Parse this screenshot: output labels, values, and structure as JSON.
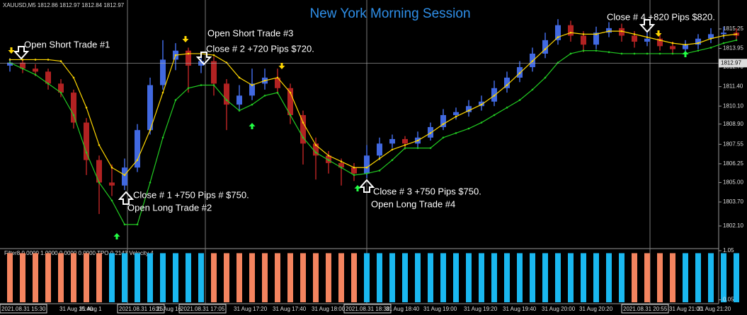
{
  "chart_data": {
    "type": "candlestick",
    "title": "New York Morning Session",
    "header": "XAUUSD,M5  1812.86 1812.97 1812.84 1812.97",
    "current_price": 1812.97,
    "ylim": [
      1800.59,
      1817.18
    ],
    "yticks": [
      {
        "value": 1802.1,
        "label": "1802.10"
      },
      {
        "value": 1803.7,
        "label": "1803.70"
      },
      {
        "value": 1805,
        "label": "1805.00"
      },
      1806.25,
      1807.55,
      {
        "value": 1808.9,
        "label": "1808.90"
      },
      {
        "value": 1810.1,
        "label": "1810.10"
      },
      {
        "value": 1811.4,
        "label": "1811.40"
      },
      {
        "value": 1812.7,
        "label": "1812.70"
      },
      1813.95,
      1815.25
    ],
    "up_color": "#4169e1",
    "down_color": "#b22222",
    "open": [
      1812.8,
      1813.0,
      1812.6,
      1812.4,
      1811.6,
      1811.0,
      1809.0,
      1806.5,
      1805.0,
      1804.8,
      1806.0,
      1808.5,
      1811.5,
      1813.2,
      1813.8,
      1812.8,
      1813.1,
      1811.6,
      1810.2,
      1810.8,
      1811.6,
      1812.0,
      1811.3,
      1809.5,
      1807.6,
      1806.8,
      1806.3,
      1806.0,
      1805.6,
      1806.8,
      1807.6,
      1807.9,
      1807.6,
      1808.0,
      1808.7,
      1809.5,
      1809.7,
      1810.1,
      1810.4,
      1811.3,
      1812.0,
      1812.7,
      1813.6,
      1814.5,
      1815.5,
      1814.8,
      1814.2,
      1815.0,
      1815.3,
      1814.8,
      1814.4,
      1814.6,
      1814.1,
      1813.9,
      1814.2,
      1814.6,
      1814.9,
      1815.0
    ],
    "high": [
      1813.3,
      1813.2,
      1812.9,
      1812.6,
      1811.9,
      1811.2,
      1809.3,
      1806.8,
      1806.2,
      1806.6,
      1808.9,
      1812.0,
      1814.5,
      1814.3,
      1814.0,
      1813.6,
      1813.4,
      1811.9,
      1811.5,
      1812.6,
      1812.6,
      1812.6,
      1811.6,
      1809.8,
      1808.0,
      1807.1,
      1806.6,
      1806.3,
      1807.5,
      1808.0,
      1808.2,
      1808.1,
      1808.4,
      1809.0,
      1809.9,
      1810.0,
      1810.5,
      1810.8,
      1811.8,
      1812.4,
      1813.1,
      1814.0,
      1815.0,
      1815.9,
      1815.8,
      1815.1,
      1815.4,
      1815.7,
      1815.6,
      1815.1,
      1815.0,
      1814.9,
      1814.4,
      1814.5,
      1814.9,
      1815.3,
      1815.4,
      1815.3
    ],
    "low": [
      1812.4,
      1812.3,
      1812.1,
      1811.2,
      1810.7,
      1808.6,
      1805.5,
      1802.9,
      1804.1,
      1804.5,
      1805.7,
      1808.2,
      1811.2,
      1812.5,
      1811.0,
      1812.3,
      1810.8,
      1808.5,
      1809.8,
      1810.5,
      1811.2,
      1810.9,
      1808.9,
      1806.2,
      1805.2,
      1805.6,
      1804.8,
      1805.1,
      1805.3,
      1806.5,
      1807.3,
      1807.2,
      1807.3,
      1807.8,
      1808.5,
      1809.2,
      1809.4,
      1809.8,
      1810.1,
      1811.0,
      1811.7,
      1812.4,
      1813.3,
      1814.2,
      1814.4,
      1813.7,
      1813.9,
      1814.7,
      1814.4,
      1814.0,
      1814.1,
      1813.8,
      1813.6,
      1813.6,
      1813.9,
      1814.3,
      1814.6,
      1814.5
    ],
    "close": [
      1813.0,
      1812.6,
      1812.4,
      1811.6,
      1811.0,
      1809.0,
      1806.5,
      1805.0,
      1804.8,
      1806.0,
      1808.5,
      1811.5,
      1813.2,
      1813.8,
      1812.8,
      1813.1,
      1811.6,
      1810.2,
      1810.8,
      1811.6,
      1812.0,
      1811.3,
      1809.5,
      1807.6,
      1806.8,
      1806.3,
      1806.0,
      1805.6,
      1806.8,
      1807.6,
      1807.9,
      1807.6,
      1808.0,
      1808.7,
      1809.5,
      1809.7,
      1810.1,
      1810.4,
      1811.3,
      1812.0,
      1812.7,
      1813.6,
      1814.5,
      1815.5,
      1814.8,
      1814.2,
      1815.0,
      1815.3,
      1814.8,
      1814.4,
      1814.6,
      1814.1,
      1813.9,
      1814.2,
      1814.6,
      1814.9,
      1815.0,
      1814.8
    ],
    "lines": [
      {
        "color": "#ffd700",
        "values": [
          1813.2,
          1813.2,
          1813.2,
          1813.2,
          1813.1,
          1812.0,
          1810.0,
          1807.5,
          1806.0,
          1805.5,
          1806.5,
          1808.5,
          1811.0,
          1813.5,
          1813.6,
          1813.6,
          1813.5,
          1813.0,
          1812.0,
          1811.5,
          1811.8,
          1812.0,
          1811.0,
          1809.0,
          1807.5,
          1806.8,
          1806.4,
          1806.0,
          1806.0,
          1806.6,
          1807.2,
          1807.5,
          1807.8,
          1808.3,
          1808.9,
          1809.4,
          1809.8,
          1810.2,
          1810.8,
          1811.5,
          1812.3,
          1813.1,
          1813.9,
          1814.7,
          1815.0,
          1814.9,
          1814.9,
          1815.1,
          1815.1,
          1814.9,
          1814.7,
          1814.5,
          1814.3,
          1814.2,
          1814.3,
          1814.6,
          1814.8,
          1814.9
        ]
      },
      {
        "color": "#22cc22",
        "values": [
          1813.0,
          1812.6,
          1812.2,
          1811.6,
          1811.0,
          1809.5,
          1807.0,
          1805.0,
          1803.8,
          1802.2,
          1802.2,
          1805.0,
          1808.0,
          1810.5,
          1811.3,
          1811.5,
          1811.5,
          1810.5,
          1809.8,
          1810.2,
          1810.8,
          1811.0,
          1809.5,
          1808.0,
          1807.0,
          1806.5,
          1806.0,
          1805.5,
          1805.6,
          1805.8,
          1806.5,
          1807.3,
          1807.3,
          1807.3,
          1808.0,
          1808.3,
          1808.6,
          1809.0,
          1809.5,
          1810.0,
          1810.5,
          1811.2,
          1812.0,
          1813.0,
          1813.6,
          1813.8,
          1813.8,
          1813.7,
          1813.6,
          1813.6,
          1813.6,
          1813.6,
          1813.6,
          1813.6,
          1813.8,
          1814.0,
          1814.3,
          1814.5
        ]
      }
    ],
    "annotations": [
      "Open Short Trade #1",
      "Open Short Trade #3",
      "Close # 2 +720 Pips $720.",
      "Close # 1 +750 Pips # $750.",
      "Open Long Trade #2",
      "Close # 3 +750 Pips $750.",
      "Open Long Trade #4",
      "Close # 4 +820 Pips $820."
    ],
    "time_labels": [
      "2021.08.31 15:30",
      "31 Aug 15:40",
      "31 Aug 1",
      "2021.08.31 16:25",
      "31 Aug 16",
      "2021.08.31 17:05",
      "31 Aug 17:20",
      "31 Aug 17:40",
      "31 Aug 18:00",
      "2021.08.31 18:30",
      "31 Aug 18:40",
      "31 Aug 19:00",
      "31 Aug 19:20",
      "31 Aug 19:40",
      "31 Aug 20:00",
      "31 Aug 20:20",
      "2021.08.31 20:55",
      "31 Aug 21:00",
      "31 Aug 21:20"
    ],
    "indicator": {
      "label": "Filter8 0.0000 1.0000 0.0000 0.0000  TPO 0.2143  Velocity 4",
      "ylim": [
        0,
        1.05
      ],
      "yticks": [
        1.05,
        0.05
      ],
      "values": [
        1,
        1,
        1,
        1,
        1,
        1,
        1,
        1,
        1,
        1,
        1,
        1,
        1,
        1,
        1,
        1,
        1,
        1,
        1,
        1,
        1,
        1,
        1,
        1,
        1,
        1,
        1,
        1,
        1,
        1,
        1,
        1,
        1,
        1,
        1,
        1,
        1,
        1,
        1,
        1,
        1,
        1,
        1,
        1,
        1,
        1,
        1,
        1,
        1,
        1,
        1,
        1,
        1,
        1,
        1,
        1,
        1,
        1
      ],
      "colors": [
        "#f4845f",
        "#f4845f",
        "#f4845f",
        "#f4845f",
        "#f4845f",
        "#f4845f",
        "#f4845f",
        "#f4845f",
        "#1ab8f0",
        "#1ab8f0",
        "#1ab8f0",
        "#1ab8f0",
        "#1ab8f0",
        "#1ab8f0",
        "#1ab8f0",
        "#1ab8f0",
        "#f4845f",
        "#f4845f",
        "#f4845f",
        "#f4845f",
        "#f4845f",
        "#f4845f",
        "#f4845f",
        "#f4845f",
        "#f4845f",
        "#f4845f",
        "#f4845f",
        "#f4845f",
        "#1ab8f0",
        "#1ab8f0",
        "#1ab8f0",
        "#1ab8f0",
        "#1ab8f0",
        "#1ab8f0",
        "#1ab8f0",
        "#1ab8f0",
        "#1ab8f0",
        "#1ab8f0",
        "#1ab8f0",
        "#1ab8f0",
        "#1ab8f0",
        "#1ab8f0",
        "#1ab8f0",
        "#1ab8f0",
        "#1ab8f0",
        "#1ab8f0",
        "#1ab8f0",
        "#1ab8f0",
        "#1ab8f0",
        "#f4845f",
        "#f4845f",
        "#f4845f",
        "#f4845f",
        "#1ab8f0",
        "#1ab8f0",
        "#1ab8f0",
        "#1ab8f0",
        "#1ab8f0"
      ]
    }
  }
}
